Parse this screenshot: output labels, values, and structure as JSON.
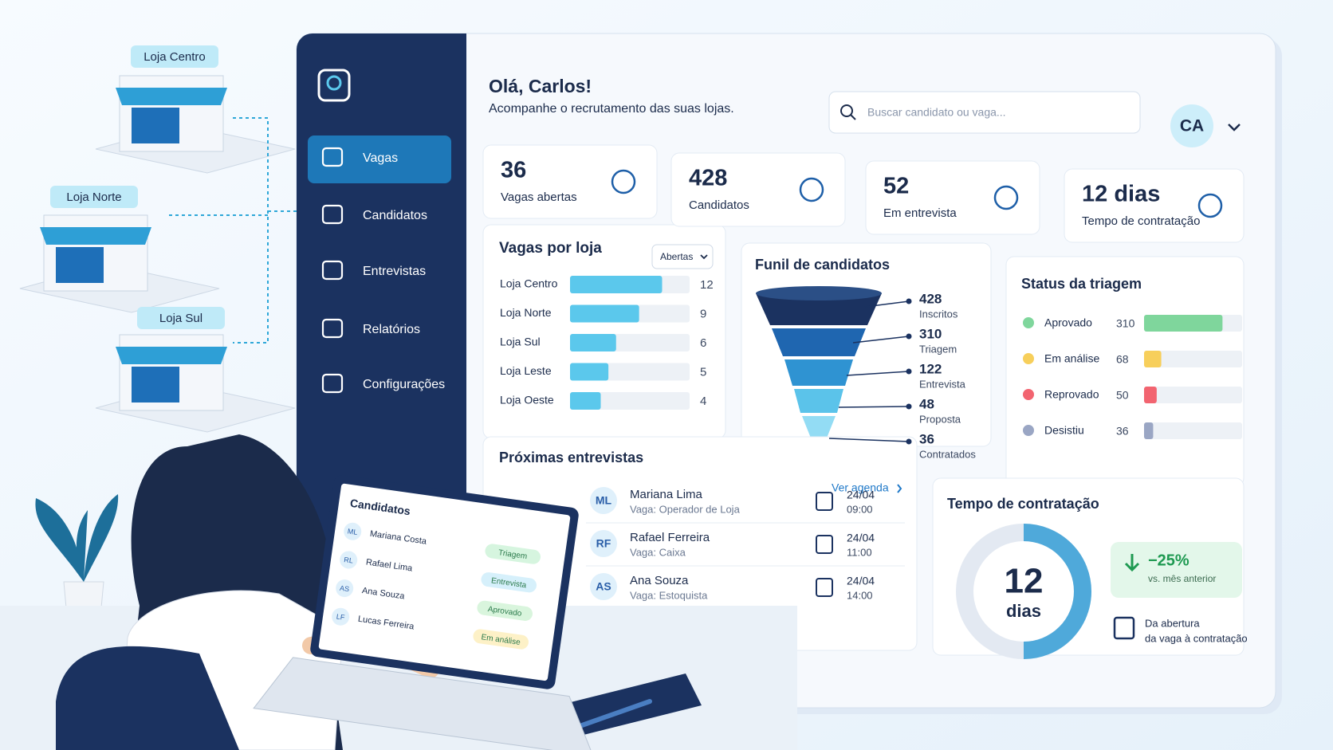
{
  "stores": [
    "Loja Centro",
    "Loja Norte",
    "Loja Sul"
  ],
  "sidebar": {
    "items": [
      "Vagas",
      "Candidatos",
      "Entrevistas",
      "Relatórios",
      "Configurações"
    ]
  },
  "header": {
    "greeting": "Olá, Carlos!",
    "subtitle": "Acompanhe o recrutamento das suas lojas.",
    "search_placeholder": "Buscar candidato ou vaga...",
    "avatar": "CA"
  },
  "kpis": [
    {
      "value": "36",
      "label": "Vagas abertas"
    },
    {
      "value": "428",
      "label": "Candidatos"
    },
    {
      "value": "52",
      "label": "Em entrevista"
    },
    {
      "value": "12 dias",
      "label": "Tempo de contratação"
    }
  ],
  "vagas_por_loja": {
    "title": "Vagas por loja",
    "filter": "Abertas",
    "categories": [
      "Loja Centro",
      "Loja Norte",
      "Loja Sul",
      "Loja Leste",
      "Loja Oeste"
    ],
    "values": [
      12,
      9,
      6,
      5,
      4
    ],
    "color": "#5bc8ec"
  },
  "funil": {
    "title": "Funil de candidatos",
    "stages": [
      {
        "value": 428,
        "label": "Inscritos"
      },
      {
        "value": 310,
        "label": "Triagem"
      },
      {
        "value": 122,
        "label": "Entrevista"
      },
      {
        "value": 48,
        "label": "Proposta"
      },
      {
        "value": 36,
        "label": "Contratados"
      }
    ]
  },
  "status": {
    "title": "Status da triagem",
    "labels": [
      "Aprovado",
      "Em análise",
      "Reprovado",
      "Desistiu"
    ],
    "values": [
      310,
      68,
      50,
      36
    ],
    "colors": [
      "#7fd69c",
      "#f7cf5b",
      "#f26470",
      "#9aa6c4"
    ]
  },
  "entrevistas": {
    "title": "Próximas entrevistas",
    "link": "Ver agenda",
    "rows": [
      {
        "initials": "ML",
        "name": "Mariana Lima",
        "role": "Vaga: Operador de Loja",
        "date": "24/04",
        "time": "09:00"
      },
      {
        "initials": "RF",
        "name": "Rafael Ferreira",
        "role": "Vaga: Caixa",
        "date": "24/04",
        "time": "11:00"
      },
      {
        "initials": "AS",
        "name": "Ana Souza",
        "role": "Vaga: Estoquista",
        "date": "24/04",
        "time": "14:00"
      }
    ]
  },
  "tempo": {
    "title": "Tempo de contratação",
    "value": "12",
    "unit": "dias",
    "change": "−25%",
    "change_note": "vs. mês anterior",
    "note": [
      "Da abertura",
      "da vaga à contratação"
    ]
  },
  "laptop": {
    "title": "Candidatos",
    "rows": [
      {
        "initials": "ML",
        "name": "Mariana Costa",
        "status": "Triagem"
      },
      {
        "initials": "RL",
        "name": "Rafael Lima",
        "status": "Entrevista"
      },
      {
        "initials": "AS",
        "name": "Ana Souza",
        "status": "Aprovado"
      },
      {
        "initials": "LF",
        "name": "Lucas Ferreira",
        "status": "Em análise"
      }
    ]
  }
}
